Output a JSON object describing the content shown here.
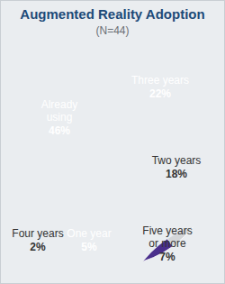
{
  "chart_data": {
    "type": "pie",
    "title": "Augmented Reality Adoption",
    "subtitle": "(N=44)",
    "categories": [
      "Three years",
      "Two years",
      "Five years or more",
      "One year",
      "Four years",
      "Already using"
    ],
    "values": [
      22,
      18,
      7,
      5,
      2,
      46
    ],
    "value_labels": [
      "22%",
      "18%",
      "7%",
      "5%",
      "2%",
      "46%"
    ],
    "colors": [
      "#b3151e",
      "#d4d6d8",
      "#4a2f8c",
      "#17803d",
      "#f07d22",
      "#2f73c4"
    ],
    "data_labels": true
  }
}
